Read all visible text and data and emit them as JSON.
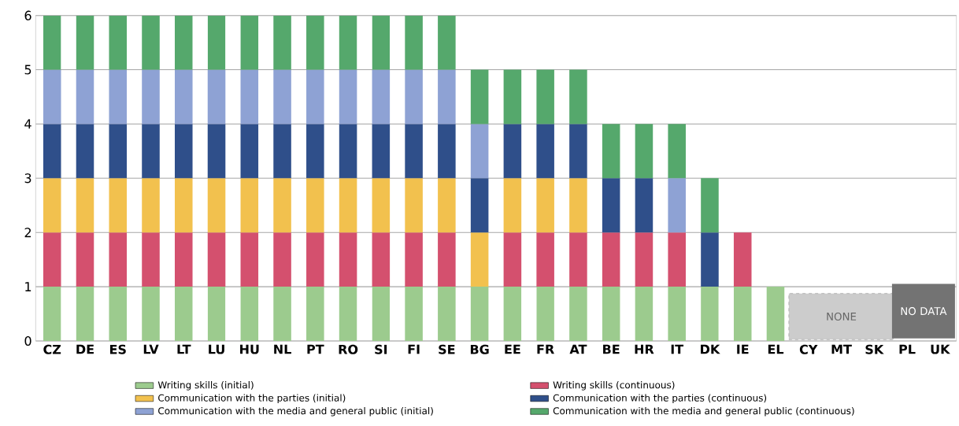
{
  "chart_data": {
    "type": "bar",
    "stacked": true,
    "categories": [
      "CZ",
      "DE",
      "ES",
      "LV",
      "LT",
      "LU",
      "HU",
      "NL",
      "PT",
      "RO",
      "SI",
      "FI",
      "SE",
      "BG",
      "EE",
      "FR",
      "AT",
      "BE",
      "HR",
      "IT",
      "DK",
      "IE",
      "EL",
      "CY",
      "MT",
      "SK",
      "PL",
      "UK"
    ],
    "series": [
      {
        "name": "Writing skills (initial)",
        "color": "#9ccb8e",
        "values": [
          1,
          1,
          1,
          1,
          1,
          1,
          1,
          1,
          1,
          1,
          1,
          1,
          1,
          1,
          1,
          1,
          1,
          1,
          1,
          1,
          1,
          1,
          1,
          null,
          null,
          null,
          null,
          null
        ]
      },
      {
        "name": "Writing skills (continuous)",
        "color": "#d4506e",
        "values": [
          1,
          1,
          1,
          1,
          1,
          1,
          1,
          1,
          1,
          1,
          1,
          1,
          1,
          null,
          1,
          1,
          1,
          1,
          1,
          1,
          null,
          1,
          null,
          null,
          null,
          null,
          null,
          null
        ]
      },
      {
        "name": "Communication with the parties (initial)",
        "color": "#f2c14e",
        "values": [
          1,
          1,
          1,
          1,
          1,
          1,
          1,
          1,
          1,
          1,
          1,
          1,
          1,
          1,
          1,
          1,
          1,
          null,
          null,
          null,
          null,
          null,
          null,
          null,
          null,
          null,
          null,
          null
        ]
      },
      {
        "name": "Communication with the parties (continuous)",
        "color": "#2f4f8a",
        "values": [
          1,
          1,
          1,
          1,
          1,
          1,
          1,
          1,
          1,
          1,
          1,
          1,
          1,
          1,
          1,
          1,
          1,
          1,
          1,
          null,
          1,
          null,
          null,
          null,
          null,
          null,
          null,
          null
        ]
      },
      {
        "name": "Communication with the media and general public (initial)",
        "color": "#8ea2d4",
        "values": [
          1,
          1,
          1,
          1,
          1,
          1,
          1,
          1,
          1,
          1,
          1,
          1,
          1,
          1,
          null,
          null,
          null,
          null,
          null,
          1,
          null,
          null,
          null,
          null,
          null,
          null,
          null,
          null
        ]
      },
      {
        "name": "Communication with the media and general public (continuous)",
        "color": "#55a86c",
        "values": [
          1,
          1,
          1,
          1,
          1,
          1,
          1,
          1,
          1,
          1,
          1,
          1,
          1,
          1,
          1,
          1,
          1,
          1,
          1,
          1,
          1,
          null,
          null,
          null,
          null,
          null,
          null,
          null
        ]
      }
    ],
    "ylim": [
      0,
      6
    ],
    "yticks": [
      0,
      1,
      2,
      3,
      4,
      5,
      6
    ],
    "grid": "y",
    "legend": "bottom",
    "annotations": [
      "NONE",
      "NO DATA"
    ]
  }
}
